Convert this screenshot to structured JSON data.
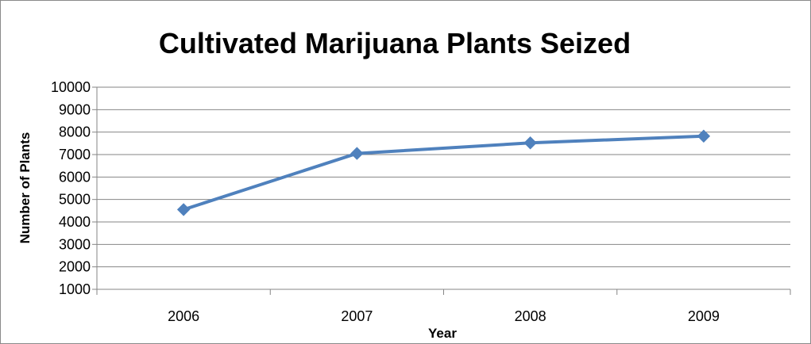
{
  "chart_data": {
    "type": "line",
    "title": "Cultivated Marijuana Plants Seized",
    "xlabel": "Year",
    "ylabel": "Number of Plants",
    "categories": [
      "2006",
      "2007",
      "2008",
      "2009"
    ],
    "series": [
      {
        "values": [
          4550,
          7050,
          7520,
          7820
        ]
      }
    ],
    "ylim": [
      1000,
      10000
    ],
    "yticks": [
      1000,
      2000,
      3000,
      4000,
      5000,
      6000,
      7000,
      8000,
      9000,
      10000
    ],
    "grid": true,
    "legend": "none",
    "colors": {
      "series": "#4F81BD",
      "grid": "#868686",
      "axis": "#868686"
    }
  }
}
